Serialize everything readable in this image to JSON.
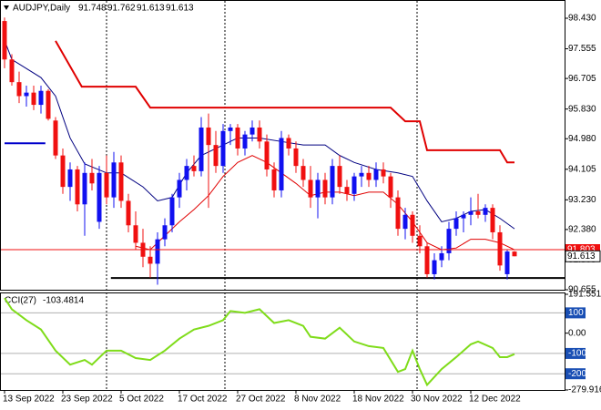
{
  "chart_data": [
    {
      "type": "candlestick",
      "title": "AUDJPY,Daily",
      "categories": [
        "13 Sep 2022",
        null,
        null,
        null,
        null,
        null,
        null,
        null,
        "23 Sep 2022",
        null,
        null,
        null,
        null,
        null,
        null,
        null,
        "5 Oct 2022",
        null,
        null,
        null,
        null,
        null,
        null,
        null,
        "17 Oct 2022",
        null,
        null,
        null,
        null,
        null,
        null,
        null,
        "27 Oct 2022",
        null,
        null,
        null,
        null,
        null,
        null,
        null,
        "8 Nov 2022",
        null,
        null,
        null,
        null,
        null,
        null,
        null,
        "18 Nov 2022",
        null,
        null,
        null,
        null,
        null,
        null,
        null,
        "30 Nov 2022",
        null,
        null,
        null,
        null,
        null,
        null,
        null,
        "12 Dec 2022",
        null,
        null,
        null,
        null,
        null,
        null
      ],
      "open": [
        98.35,
        97.25,
        96.6,
        96.2,
        96.3,
        95.95,
        96.35,
        95.5,
        94.5,
        93.6,
        94.1,
        93.1,
        94.0,
        92.6,
        94.0,
        93.3,
        94.3,
        93.2,
        92.5,
        92.0,
        91.6,
        91.4,
        92.1,
        92.5,
        93.3,
        93.8,
        94.2,
        94.05,
        95.3,
        94.8,
        94.2,
        95.2,
        95.3,
        94.7,
        95.1,
        95.3,
        94.9,
        94.1,
        93.5,
        95.0,
        94.7,
        94.2,
        93.8,
        93.3,
        93.8,
        93.3,
        94.2,
        93.6,
        93.4,
        93.9,
        94.0,
        93.8,
        94.1,
        93.9,
        93.3,
        92.4,
        92.8,
        92.2,
        91.9,
        91.1,
        91.5,
        91.7,
        92.4,
        92.7,
        92.8,
        92.9,
        92.8,
        93.0,
        92.3,
        91.1,
        91.748
      ],
      "high": [
        98.45,
        97.4,
        96.9,
        96.5,
        96.5,
        96.5,
        96.4,
        95.6,
        94.7,
        94.3,
        94.2,
        94.3,
        94.4,
        94.2,
        94.5,
        94.6,
        94.5,
        93.4,
        92.9,
        92.4,
        91.9,
        92.3,
        92.7,
        93.4,
        94.0,
        94.4,
        94.5,
        95.6,
        95.7,
        95.2,
        95.4,
        95.4,
        95.4,
        95.2,
        95.5,
        95.5,
        95.1,
        94.3,
        95.2,
        95.1,
        94.9,
        94.4,
        94.2,
        94.0,
        94.0,
        94.4,
        94.5,
        93.8,
        94.0,
        94.2,
        94.2,
        94.3,
        94.3,
        94.0,
        93.5,
        93.0,
        92.9,
        92.5,
        92.0,
        91.7,
        91.9,
        92.6,
        92.9,
        92.9,
        93.3,
        93.4,
        93.1,
        93.1,
        92.5,
        91.8,
        91.762
      ],
      "low": [
        97.0,
        96.5,
        96.0,
        95.9,
        95.8,
        95.7,
        95.5,
        94.4,
        93.4,
        93.2,
        92.9,
        92.2,
        93.5,
        92.4,
        93.1,
        93.0,
        93.0,
        92.3,
        91.8,
        91.3,
        91.0,
        90.8,
        91.9,
        92.3,
        93.0,
        93.5,
        93.9,
        93.9,
        93.0,
        94.0,
        94.0,
        94.8,
        94.5,
        94.5,
        94.9,
        94.7,
        93.9,
        93.3,
        93.3,
        94.5,
        94.0,
        93.6,
        93.0,
        92.7,
        93.1,
        93.1,
        93.4,
        93.2,
        93.2,
        93.6,
        93.6,
        93.6,
        93.7,
        93.0,
        92.2,
        92.1,
        92.0,
        91.7,
        91.0,
        90.95,
        91.3,
        91.5,
        92.2,
        92.3,
        92.5,
        92.7,
        92.6,
        92.1,
        91.2,
        90.95,
        91.613
      ],
      "close": [
        97.25,
        96.6,
        96.2,
        96.3,
        95.95,
        96.35,
        95.55,
        94.5,
        93.6,
        94.1,
        93.1,
        94.0,
        93.7,
        94.0,
        93.3,
        94.3,
        93.2,
        92.5,
        92.0,
        91.6,
        91.4,
        92.1,
        92.5,
        93.3,
        93.8,
        94.2,
        94.05,
        95.3,
        94.8,
        94.2,
        95.2,
        95.3,
        94.7,
        95.1,
        95.3,
        94.9,
        94.1,
        93.5,
        95.0,
        94.7,
        94.2,
        93.8,
        93.3,
        93.8,
        93.3,
        94.2,
        93.6,
        93.4,
        93.9,
        94.0,
        93.8,
        94.1,
        93.9,
        93.3,
        92.4,
        92.8,
        92.2,
        91.9,
        91.1,
        91.5,
        91.7,
        92.4,
        92.7,
        92.8,
        92.9,
        92.8,
        93.0,
        92.3,
        91.35,
        91.75,
        91.613
      ],
      "up_color": "#1010f0",
      "down_color": "#f01010",
      "ylim": [
        90.655,
        98.874
      ],
      "yticks": [
        {
          "value": 98.43,
          "label": "98.430"
        },
        {
          "value": 97.555,
          "label": "97.555"
        },
        {
          "value": 96.705,
          "label": "96.705"
        },
        {
          "value": 95.83,
          "label": "95.830"
        },
        {
          "value": 94.98,
          "label": "94.980"
        },
        {
          "value": 94.105,
          "label": "94.105"
        },
        {
          "value": 93.23,
          "label": "93.230"
        },
        {
          "value": 92.38,
          "label": "92.380"
        },
        {
          "value": 91.505,
          "label": "91.505"
        },
        {
          "value": 90.655,
          "label": "90.655"
        }
      ],
      "price_lines": [
        {
          "value": 91.803,
          "color": "#f01010"
        }
      ],
      "series": [
        {
          "color": "#000080",
          "width": 1,
          "x": [
            0,
            1,
            5,
            7,
            9,
            11,
            14,
            16,
            19,
            21,
            23,
            25,
            27,
            30,
            32,
            35,
            38,
            41,
            44,
            46,
            48,
            51,
            54,
            56,
            58,
            60,
            62,
            64,
            66,
            68,
            70
          ],
          "values": [
            97.8,
            97.25,
            96.73,
            96.2,
            95.0,
            94.26,
            94.0,
            94.0,
            93.6,
            93.2,
            93.3,
            94.0,
            94.5,
            94.8,
            95.0,
            95.0,
            94.9,
            94.8,
            94.8,
            94.5,
            94.3,
            94.1,
            94.0,
            93.9,
            93.2,
            92.6,
            92.7,
            92.9,
            92.95,
            92.7,
            92.4
          ]
        },
        {
          "color": "#e00000",
          "width": 1,
          "x": [
            18,
            20,
            22,
            24,
            26,
            28,
            30,
            32,
            34,
            36,
            38,
            40,
            42,
            44,
            46,
            48,
            50,
            52,
            54,
            56,
            58,
            60,
            62,
            64,
            66,
            68,
            70
          ],
          "values": [
            91.9,
            91.8,
            92.2,
            92.6,
            92.95,
            93.35,
            93.9,
            94.3,
            94.5,
            94.3,
            94.0,
            93.7,
            93.35,
            93.45,
            93.45,
            93.35,
            93.45,
            93.45,
            93.1,
            92.6,
            92.0,
            91.8,
            91.85,
            92.1,
            92.1,
            92.0,
            91.8
          ]
        },
        {
          "color": "#e00000",
          "width": 2,
          "x": [
            7,
            10.6,
            11,
            18,
            20,
            53,
            55,
            57,
            58,
            68,
            69,
            70
          ],
          "values": [
            97.78,
            96.47,
            96.47,
            96.47,
            95.87,
            95.87,
            95.48,
            95.48,
            94.65,
            94.65,
            94.3,
            94.3
          ]
        },
        {
          "color": "#0000cc",
          "width": 2,
          "x": [
            0,
            5.6
          ],
          "values": [
            94.85,
            94.85
          ]
        },
        {
          "color": "#000000",
          "width": 2,
          "x": [
            14.6,
            76.9
          ],
          "values": [
            90.99,
            90.99
          ]
        }
      ]
    },
    {
      "type": "line",
      "title": "CCI(27)",
      "color": "#7fdc1a",
      "x": [
        0,
        1,
        3,
        5,
        7,
        9,
        11,
        12,
        14,
        16,
        18,
        20,
        22,
        24,
        26,
        28,
        30,
        31,
        33,
        35,
        37,
        39,
        41,
        42,
        44,
        46,
        48,
        50,
        52,
        54,
        55,
        56,
        57,
        58,
        60,
        62,
        64,
        65,
        67,
        68,
        69,
        70
      ],
      "values": [
        173,
        118,
        64,
        18,
        -86,
        -155,
        -132,
        -155,
        -86,
        -86,
        -123,
        -132,
        -86,
        -27,
        18,
        36,
        64,
        109,
        100,
        118,
        50,
        64,
        36,
        -18,
        -27,
        27,
        -41,
        -64,
        -73,
        -191,
        -177,
        -86,
        -177,
        -255,
        -177,
        -118,
        -55,
        -41,
        -73,
        -118,
        -118,
        -103.4814
      ],
      "ylim": [
        -279.916,
        191.5512
      ],
      "yticks": [
        191.5512,
        100,
        {
          "value": 0,
          "label": "0.00"
        },
        -100,
        -200,
        -279.916
      ],
      "levels": [
        100,
        -100,
        -200
      ],
      "level_color": "#1a4fb4"
    }
  ]
}
